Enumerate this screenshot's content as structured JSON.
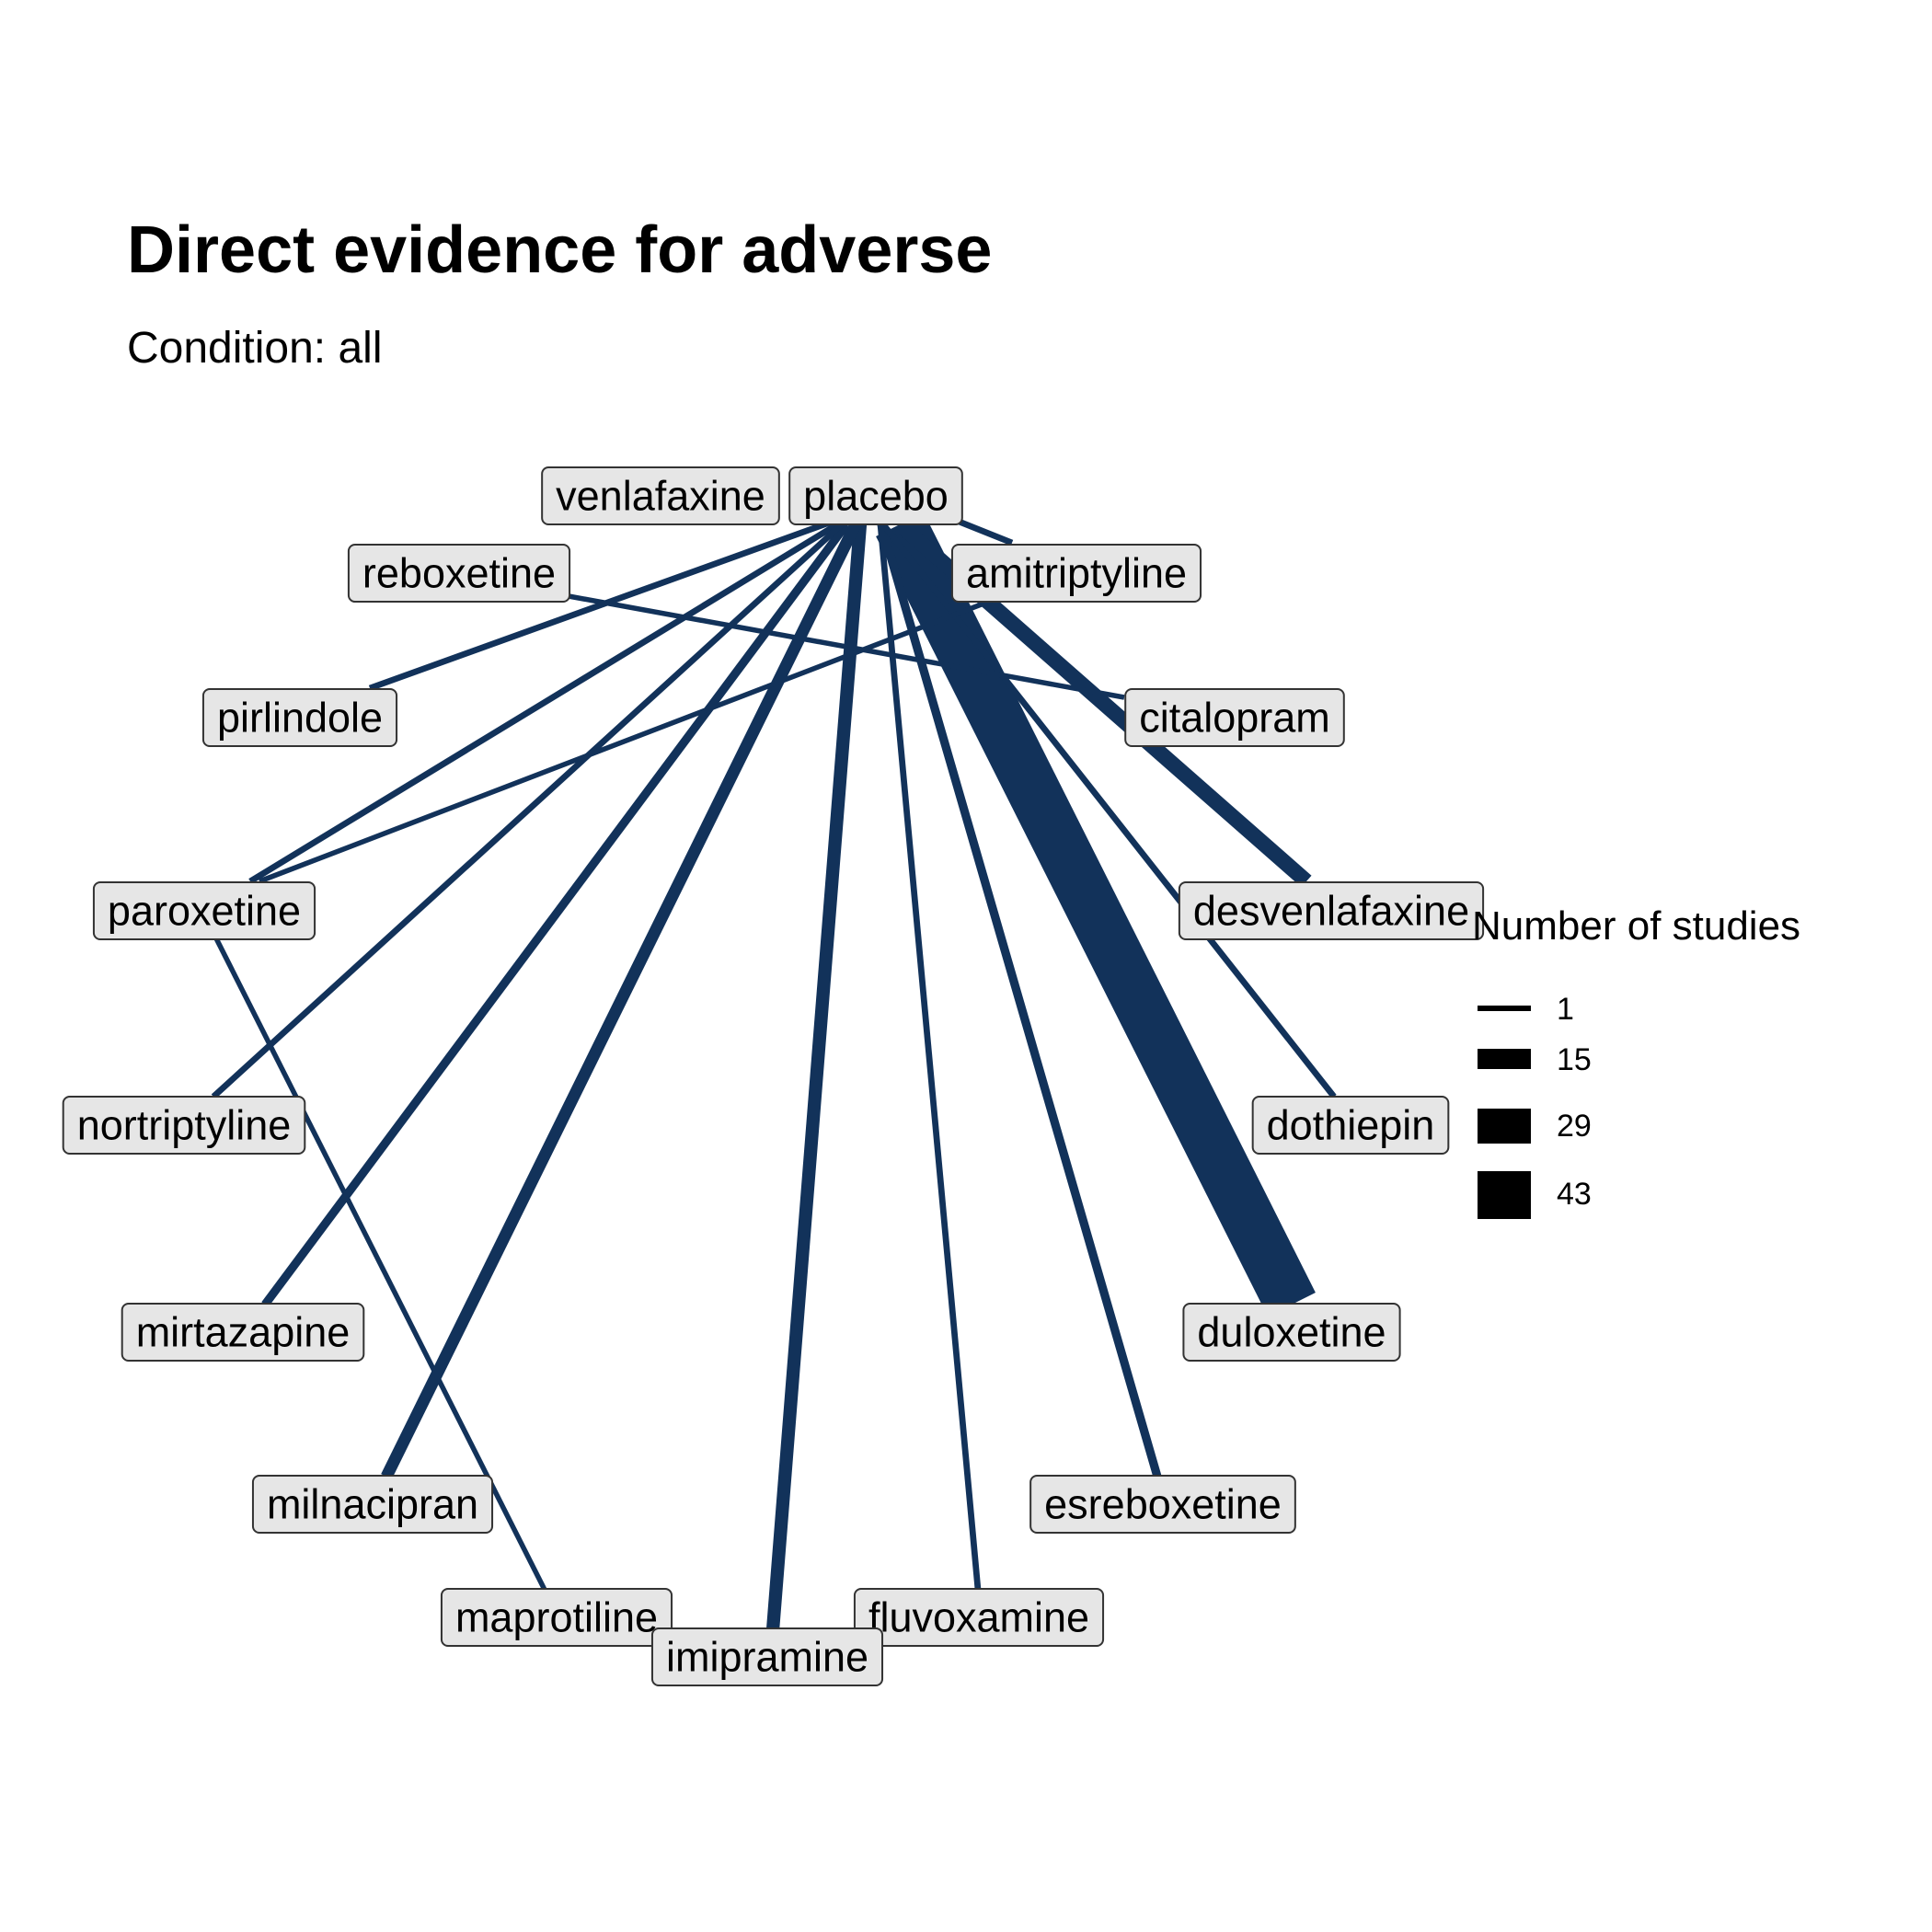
{
  "title": "Direct evidence for adverse",
  "subtitle": "Condition: all",
  "colors": {
    "edge": "#12325a",
    "node_fill": "#e6e6e6",
    "node_border": "#333333"
  },
  "network": {
    "center": "placebo",
    "nodes": [
      "placebo",
      "venlafaxine",
      "reboxetine",
      "amitriptyline",
      "pirlindole",
      "citalopram",
      "paroxetine",
      "desvenlafaxine",
      "nortriptyline",
      "dothiepin",
      "mirtazapine",
      "duloxetine",
      "milnacipran",
      "esreboxetine",
      "maprotiline",
      "fluvoxamine",
      "imipramine"
    ],
    "edges": [
      {
        "from": "placebo",
        "to": "duloxetine",
        "studies": 43
      },
      {
        "from": "placebo",
        "to": "desvenlafaxine",
        "studies": 10
      },
      {
        "from": "placebo",
        "to": "imipramine",
        "studies": 8
      },
      {
        "from": "placebo",
        "to": "milnacipran",
        "studies": 7
      },
      {
        "from": "placebo",
        "to": "esreboxetine",
        "studies": 4
      },
      {
        "from": "placebo",
        "to": "mirtazapine",
        "studies": 4
      },
      {
        "from": "placebo",
        "to": "pirlindole",
        "studies": 2
      },
      {
        "from": "placebo",
        "to": "paroxetine",
        "studies": 2
      },
      {
        "from": "placebo",
        "to": "nortriptyline",
        "studies": 2
      },
      {
        "from": "placebo",
        "to": "dothiepin",
        "studies": 2
      },
      {
        "from": "placebo",
        "to": "fluvoxamine",
        "studies": 2
      },
      {
        "from": "placebo",
        "to": "citalopram",
        "studies": 2
      },
      {
        "from": "reboxetine",
        "to": "citalopram",
        "studies": 1
      },
      {
        "from": "paroxetine",
        "to": "amitriptyline",
        "studies": 1
      },
      {
        "from": "paroxetine",
        "to": "maprotiline",
        "studies": 1
      }
    ]
  },
  "legend": {
    "title": "Number of studies",
    "items": [
      {
        "label": "1",
        "value": 1
      },
      {
        "label": "15",
        "value": 15
      },
      {
        "label": "29",
        "value": 29
      },
      {
        "label": "43",
        "value": 43
      }
    ]
  }
}
